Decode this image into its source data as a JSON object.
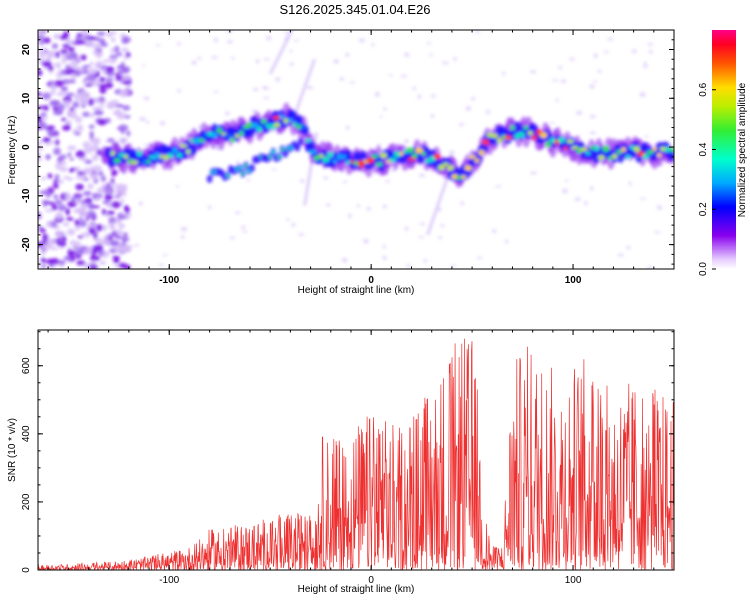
{
  "title": "S126.2025.345.01.04.E26",
  "chart_data": [
    {
      "type": "heatmap",
      "xlabel": "Height of straight line (km)",
      "ylabel": "Frequency (Hz)",
      "xlim": [
        -165,
        150
      ],
      "ylim": [
        -25,
        24
      ],
      "xticks": [
        -100,
        0,
        100
      ],
      "yticks": [
        -20,
        -10,
        0,
        10,
        20
      ],
      "colorbar": {
        "label": "Normalized spectral amplitude",
        "range": [
          0.0,
          0.8
        ],
        "ticks": [
          0.0,
          0.2,
          0.4,
          0.6
        ],
        "tick_labels": [
          "0.0",
          "0.2",
          "0.4",
          "0.6"
        ]
      },
      "ridge": {
        "x": [
          -130,
          -120,
          -110,
          -100,
          -90,
          -80,
          -70,
          -60,
          -50,
          -42,
          -35,
          -28,
          -20,
          -10,
          0,
          10,
          20,
          30,
          38,
          44,
          50,
          60,
          70,
          80,
          90,
          100,
          110,
          120,
          130,
          140,
          148
        ],
        "freq": [
          -2,
          -2.5,
          -2,
          -1.5,
          0,
          3,
          2,
          4,
          5,
          6,
          5,
          -2,
          -2,
          -2.5,
          -3,
          -2.5,
          -1.5,
          -2,
          -4,
          -7,
          -3,
          2,
          3,
          3,
          1,
          0,
          -1,
          -1.5,
          -1,
          -1.2,
          -1
        ]
      }
    },
    {
      "type": "line",
      "xlabel": "Height of straight line (km)",
      "ylabel": "SNR (10 * v/v)",
      "xlim": [
        -165,
        150
      ],
      "ylim": [
        0,
        705
      ],
      "xticks": [
        -100,
        0,
        100
      ],
      "yticks": [
        0,
        200,
        400,
        600
      ],
      "series": [
        {
          "color": "#ee3030",
          "envelope_x": [
            -165,
            -150,
            -130,
            -110,
            -90,
            -80,
            -70,
            -55,
            -40,
            -28,
            -25,
            -10,
            0,
            10,
            20,
            30,
            38,
            45,
            50,
            53,
            55,
            60,
            65,
            70,
            80,
            90,
            100,
            110,
            120,
            130,
            140,
            150
          ],
          "envelope_y": [
            15,
            18,
            25,
            40,
            70,
            120,
            130,
            150,
            170,
            170,
            400,
            420,
            470,
            430,
            470,
            560,
            640,
            700,
            690,
            600,
            210,
            70,
            80,
            620,
            670,
            600,
            620,
            640,
            560,
            560,
            550,
            500
          ]
        }
      ]
    }
  ]
}
